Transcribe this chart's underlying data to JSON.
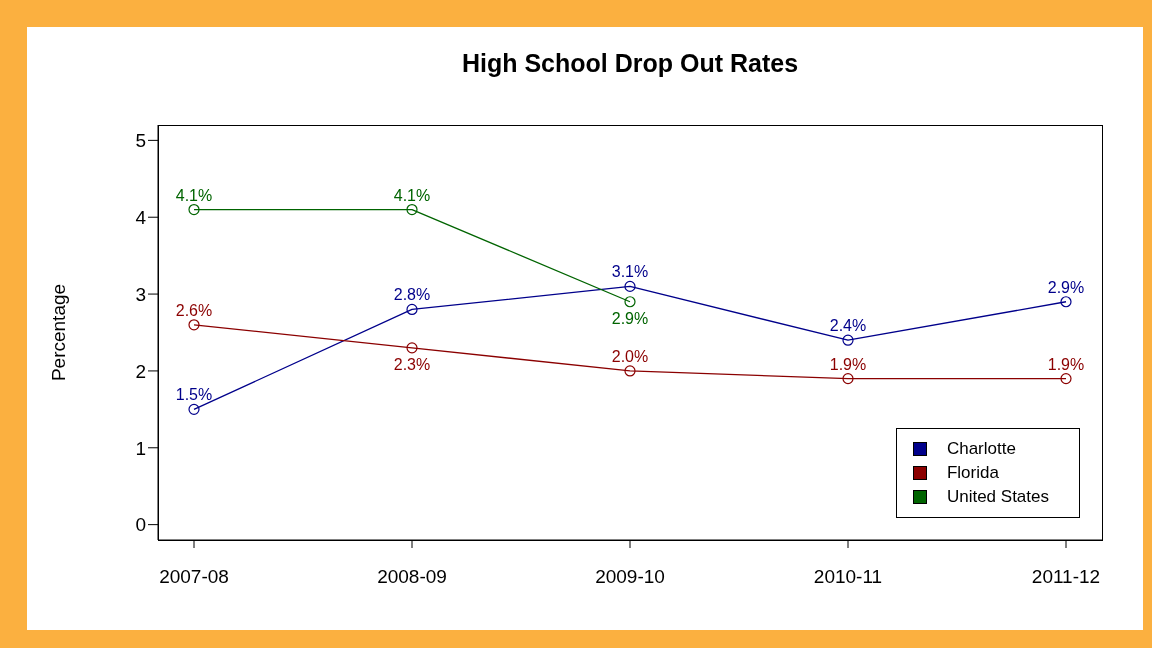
{
  "chart_data": {
    "type": "line",
    "title": "High School Drop Out Rates",
    "ylabel": "Percentage",
    "categories": [
      "2007-08",
      "2008-09",
      "2009-10",
      "2010-11",
      "2011-12"
    ],
    "series": [
      {
        "name": "Charlotte",
        "color": "#00008b",
        "values": [
          1.5,
          2.8,
          3.1,
          2.4,
          2.9
        ],
        "value_labels": [
          "1.5%",
          "2.8%",
          "3.1%",
          "2.4%",
          "2.9%"
        ]
      },
      {
        "name": "Florida",
        "color": "#8b0000",
        "values": [
          2.6,
          2.3,
          2.0,
          1.9,
          1.9
        ],
        "value_labels": [
          "2.6%",
          "2.3%",
          "2.0%",
          "1.9%",
          "1.9%"
        ]
      },
      {
        "name": "United States",
        "color": "#006400",
        "values": [
          4.1,
          4.1,
          2.9,
          null,
          null
        ],
        "value_labels": [
          "4.1%",
          "4.1%",
          "2.9%",
          null,
          null
        ]
      }
    ],
    "ylim": [
      -0.2,
      5.2
    ],
    "yticks": [
      0,
      1,
      2,
      3,
      4,
      5
    ],
    "grid": false,
    "legend": "bottom right",
    "marker": "circle",
    "line_style": "solid"
  }
}
